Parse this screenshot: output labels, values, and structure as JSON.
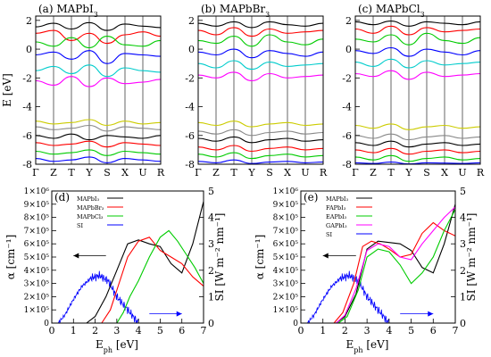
{
  "figure": {
    "panels_top": [
      {
        "label": "(a) MAPbI",
        "sub": "3",
        "ylabel": "E [eV]",
        "yticks": [
          "2",
          "0",
          "-2",
          "-4",
          "-6",
          "-8"
        ],
        "kpoints": [
          "Γ",
          "Z",
          "T",
          "Y",
          "S",
          "X",
          "U",
          "R"
        ],
        "palette": [
          "#000000",
          "#ff0000",
          "#00cc00",
          "#0000ff",
          "#00cccc",
          "#ff00ff",
          "#cccc00",
          "#888888"
        ],
        "bands": [
          [
            1.55,
            1.8,
            1.4,
            1.85,
            1.3,
            1.75,
            1.6,
            1.5
          ],
          [
            1.1,
            1.3,
            0.6,
            1.1,
            0.4,
            1.0,
            1.2,
            0.9
          ],
          [
            0.5,
            0.2,
            0.8,
            0.1,
            0.9,
            0.3,
            0.2,
            0.6
          ],
          [
            -0.4,
            -0.2,
            -0.7,
            -0.1,
            -1.0,
            -0.3,
            -0.4,
            -0.5
          ],
          [
            -1.5,
            -1.2,
            -1.7,
            -1.1,
            -1.9,
            -1.3,
            -1.5,
            -1.6
          ],
          [
            -2.2,
            -2.5,
            -1.9,
            -2.6,
            -2.0,
            -2.4,
            -2.3,
            -2.1
          ],
          [
            -5.0,
            -5.2,
            -5.1,
            -4.9,
            -5.3,
            -5.0,
            -5.2,
            -5.1
          ],
          [
            -5.4,
            -5.6,
            -5.5,
            -5.3,
            -5.7,
            -5.4,
            -5.5,
            -5.6
          ],
          [
            -6.0,
            -6.2,
            -5.9,
            -6.3,
            -6.0,
            -6.1,
            -6.2,
            -6.0
          ],
          [
            -6.5,
            -6.7,
            -6.6,
            -6.4,
            -6.8,
            -6.5,
            -6.6,
            -6.7
          ],
          [
            -7.1,
            -7.3,
            -7.2,
            -7.0,
            -7.4,
            -7.1,
            -7.2,
            -7.3
          ],
          [
            -7.6,
            -7.8,
            -7.7,
            -7.5,
            -7.9,
            -7.6,
            -7.7,
            -7.8
          ]
        ]
      },
      {
        "label": "(b) MAPbBr",
        "sub": "3",
        "ylabel": "",
        "yticks": [
          "2",
          "0",
          "-2",
          "-4",
          "-6",
          "-8"
        ],
        "kpoints": [
          "Γ",
          "Z",
          "T",
          "Y",
          "S",
          "X",
          "U",
          "R"
        ],
        "palette": [
          "#000000",
          "#ff0000",
          "#00cc00",
          "#0000ff",
          "#00cccc",
          "#ff00ff",
          "#cccc00",
          "#888888"
        ],
        "bands": [
          [
            1.8,
            1.6,
            1.9,
            1.5,
            1.9,
            1.7,
            1.6,
            1.8
          ],
          [
            1.3,
            1.0,
            1.5,
            0.9,
            1.4,
            1.1,
            1.2,
            1.3
          ],
          [
            0.6,
            0.4,
            0.9,
            0.2,
            1.0,
            0.5,
            0.3,
            0.7
          ],
          [
            -0.2,
            -0.4,
            0.0,
            -0.6,
            -0.1,
            -0.3,
            -0.5,
            -0.2
          ],
          [
            -1.0,
            -1.3,
            -0.8,
            -1.4,
            -0.9,
            -1.2,
            -1.1,
            -1.0
          ],
          [
            -1.8,
            -2.0,
            -1.6,
            -2.2,
            -1.7,
            -2.0,
            -1.9,
            -1.8
          ],
          [
            -5.1,
            -5.3,
            -5.0,
            -5.4,
            -5.2,
            -5.1,
            -5.3,
            -5.2
          ],
          [
            -5.7,
            -5.9,
            -5.6,
            -6.0,
            -5.8,
            -5.7,
            -5.9,
            -5.8
          ],
          [
            -6.2,
            -6.4,
            -6.1,
            -6.5,
            -6.3,
            -6.2,
            -6.4,
            -6.3
          ],
          [
            -6.8,
            -7.0,
            -6.7,
            -7.1,
            -6.9,
            -6.8,
            -7.0,
            -6.9
          ],
          [
            -7.3,
            -7.5,
            -7.2,
            -7.6,
            -7.4,
            -7.3,
            -7.5,
            -7.4
          ],
          [
            -7.8,
            -7.9,
            -7.7,
            -7.95,
            -7.85,
            -7.8,
            -7.9,
            -7.85
          ]
        ]
      },
      {
        "label": "(c) MAPbCl",
        "sub": "3",
        "ylabel": "",
        "yticks": [
          "2",
          "0",
          "-2",
          "-4",
          "-6",
          "-8"
        ],
        "kpoints": [
          "Γ",
          "Z",
          "T",
          "Y",
          "S",
          "X",
          "U",
          "R"
        ],
        "palette": [
          "#000000",
          "#ff0000",
          "#00cc00",
          "#0000ff",
          "#00cccc",
          "#ff00ff",
          "#cccc00",
          "#888888"
        ],
        "bands": [
          [
            1.9,
            1.7,
            1.95,
            1.6,
            1.9,
            1.8,
            1.7,
            1.9
          ],
          [
            1.4,
            1.1,
            1.6,
            1.0,
            1.5,
            1.2,
            1.3,
            1.4
          ],
          [
            0.7,
            0.5,
            1.0,
            0.3,
            1.1,
            0.6,
            0.4,
            0.8
          ],
          [
            -0.1,
            -0.3,
            0.1,
            -0.5,
            0.0,
            -0.2,
            -0.4,
            -0.1
          ],
          [
            -0.9,
            -1.2,
            -0.7,
            -1.3,
            -0.8,
            -1.1,
            -1.0,
            -0.9
          ],
          [
            -1.7,
            -1.9,
            -1.5,
            -2.1,
            -1.6,
            -1.9,
            -1.8,
            -1.7
          ],
          [
            -5.3,
            -5.5,
            -5.2,
            -5.6,
            -5.4,
            -5.3,
            -5.5,
            -5.4
          ],
          [
            -6.0,
            -6.2,
            -5.9,
            -6.3,
            -6.1,
            -6.0,
            -6.2,
            -6.1
          ],
          [
            -6.5,
            -6.7,
            -6.4,
            -6.8,
            -6.6,
            -6.5,
            -6.7,
            -6.6
          ],
          [
            -7.0,
            -7.2,
            -6.9,
            -7.3,
            -7.1,
            -7.0,
            -7.2,
            -7.1
          ],
          [
            -7.5,
            -7.7,
            -7.4,
            -7.8,
            -7.6,
            -7.5,
            -7.7,
            -7.6
          ],
          [
            -7.9,
            -7.95,
            -7.85,
            -7.98,
            -7.9,
            -7.92,
            -7.95,
            -7.9
          ]
        ]
      }
    ],
    "panels_bottom": [
      {
        "label": "(d)",
        "ylabel_left": "α [cm⁻¹]",
        "ylabel_right": "SI [W m⁻² nm⁻¹]",
        "xlabel": "E",
        "xlabel_sub": "ph",
        "xlabel_unit": " [eV]",
        "xticks": [
          "0",
          "1",
          "2",
          "3",
          "4",
          "5",
          "6",
          "7"
        ],
        "yticks_left": [
          "0",
          "1×10⁵",
          "2×10⁵",
          "3×10⁵",
          "4×10⁵",
          "5×10⁵",
          "6×10⁵",
          "7×10⁵",
          "8×10⁵",
          "9×10⁵",
          "1×10⁶"
        ],
        "yticks_right": [
          "0",
          "1",
          "2",
          "3",
          "4",
          "5"
        ],
        "legend": [
          {
            "label": "MAPbI₃",
            "color": "#000000"
          },
          {
            "label": "MAPbBr₃",
            "color": "#ff0000"
          },
          {
            "label": "MAPbCl₃",
            "color": "#00cc00"
          },
          {
            "label": "SI",
            "color": "#0000ff"
          }
        ],
        "series": [
          {
            "color": "#000000",
            "x": [
              1.6,
              2.0,
              2.5,
              3.0,
              3.5,
              4.0,
              4.5,
              5.0,
              5.5,
              6.0,
              6.5,
              7.0
            ],
            "y": [
              0,
              50000,
              200000,
              400000,
              600000,
              630000,
              600000,
              580000,
              450000,
              380000,
              600000,
              920000
            ]
          },
          {
            "color": "#ff0000",
            "x": [
              2.3,
              2.7,
              3.0,
              3.5,
              4.0,
              4.5,
              5.0,
              5.5,
              6.0,
              6.5,
              7.0
            ],
            "y": [
              0,
              100000,
              250000,
              500000,
              620000,
              650000,
              550000,
              500000,
              450000,
              350000,
              280000
            ]
          },
          {
            "color": "#00cc00",
            "x": [
              3.0,
              3.3,
              3.6,
              4.0,
              4.5,
              5.0,
              5.4,
              5.8,
              6.2,
              6.6,
              7.0
            ],
            "y": [
              0,
              80000,
              200000,
              320000,
              500000,
              650000,
              700000,
              620000,
              520000,
              420000,
              300000
            ]
          }
        ],
        "si": {
          "color": "#0000ff",
          "x": [
            0.3,
            0.6,
            1.0,
            1.4,
            1.8,
            2.2,
            2.6,
            3.0,
            3.4,
            3.8,
            4.0
          ],
          "y": [
            0.0,
            0.3,
            0.9,
            1.4,
            1.7,
            1.8,
            1.6,
            1.0,
            0.6,
            0.2,
            0.0
          ]
        }
      },
      {
        "label": "(e)",
        "ylabel_left": "α [cm⁻¹]",
        "ylabel_right": "SI [W m⁻² nm⁻¹]",
        "xlabel": "E",
        "xlabel_sub": "ph",
        "xlabel_unit": " [eV]",
        "xticks": [
          "0",
          "1",
          "2",
          "3",
          "4",
          "5",
          "6",
          "7"
        ],
        "yticks_left": [
          "0",
          "1×10⁵",
          "2×10⁵",
          "3×10⁵",
          "4×10⁵",
          "5×10⁵",
          "6×10⁵",
          "7×10⁵",
          "8×10⁵",
          "9×10⁵",
          "1×10⁶"
        ],
        "yticks_right": [
          "0",
          "1",
          "2",
          "3",
          "4",
          "5"
        ],
        "legend": [
          {
            "label": "MAPbI₃",
            "color": "#000000"
          },
          {
            "label": "FAPbI₃",
            "color": "#ff0000"
          },
          {
            "label": "EAPbI₃",
            "color": "#00cc00"
          },
          {
            "label": "GAPbI₃",
            "color": "#ff00ff"
          },
          {
            "label": "SI",
            "color": "#0000ff"
          }
        ],
        "series": [
          {
            "color": "#000000",
            "x": [
              1.6,
              2.0,
              2.5,
              3.0,
              3.5,
              4.0,
              4.5,
              5.0,
              5.5,
              6.0,
              6.5,
              7.0
            ],
            "y": [
              0,
              50000,
              220000,
              560000,
              620000,
              610000,
              600000,
              550000,
              420000,
              380000,
              600000,
              900000
            ]
          },
          {
            "color": "#ff0000",
            "x": [
              1.5,
              1.9,
              2.4,
              2.8,
              3.2,
              3.6,
              4.0,
              4.5,
              5.0,
              5.5,
              6.0,
              6.5,
              7.0
            ],
            "y": [
              0,
              80000,
              300000,
              580000,
              620000,
              600000,
              560000,
              500000,
              520000,
              680000,
              760000,
              700000,
              660000
            ]
          },
          {
            "color": "#00cc00",
            "x": [
              1.7,
              2.1,
              2.6,
              3.0,
              3.5,
              4.0,
              4.5,
              5.0,
              5.5,
              6.0,
              6.5,
              7.0
            ],
            "y": [
              0,
              50000,
              250000,
              500000,
              560000,
              540000,
              440000,
              300000,
              380000,
              500000,
              700000,
              860000
            ]
          },
          {
            "color": "#ff00ff",
            "x": [
              1.6,
              2.0,
              2.5,
              3.0,
              3.5,
              4.0,
              4.5,
              5.0,
              5.5,
              6.0,
              6.5,
              7.0
            ],
            "y": [
              0,
              60000,
              260000,
              550000,
              600000,
              580000,
              500000,
              480000,
              600000,
              700000,
              800000,
              880000
            ]
          }
        ],
        "si": {
          "color": "#0000ff",
          "x": [
            0.3,
            0.6,
            1.0,
            1.4,
            1.8,
            2.2,
            2.6,
            3.0,
            3.4,
            3.8,
            4.0
          ],
          "y": [
            0.0,
            0.3,
            0.9,
            1.4,
            1.7,
            1.8,
            1.6,
            1.0,
            0.6,
            0.2,
            0.0
          ]
        }
      }
    ]
  }
}
